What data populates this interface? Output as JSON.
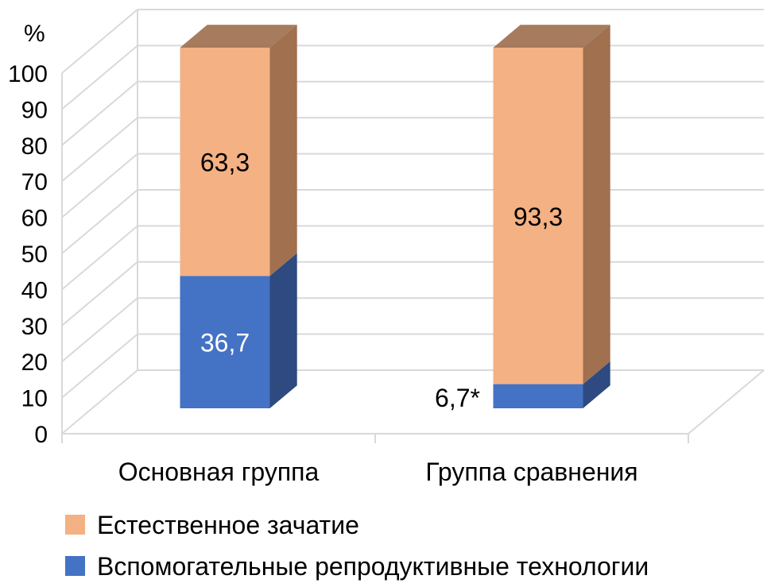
{
  "chart_data": {
    "type": "bar",
    "stacked": true,
    "three_d": true,
    "y_unit_label": "%",
    "ylim": [
      0,
      100
    ],
    "yticks": [
      0,
      10,
      20,
      30,
      40,
      50,
      60,
      70,
      80,
      90,
      100
    ],
    "grid": true,
    "legend_position": "bottom-left",
    "categories": [
      "Основная группа",
      "Группа сравнения"
    ],
    "series": [
      {
        "name": "Вспомогательные репродуктивные технологии",
        "values": [
          36.7,
          6.7
        ],
        "labels": [
          "36,7",
          "6,7*"
        ],
        "color": "#4472C4",
        "side_color": "#2E4A80",
        "label_color": "#ffffff"
      },
      {
        "name": "Естественное зачатие",
        "values": [
          63.3,
          93.3
        ],
        "labels": [
          "63,3",
          "93,3"
        ],
        "color": "#F4B183",
        "side_color": "#A0704F",
        "label_color": "#000000"
      }
    ],
    "legend_order": [
      1,
      0
    ]
  }
}
